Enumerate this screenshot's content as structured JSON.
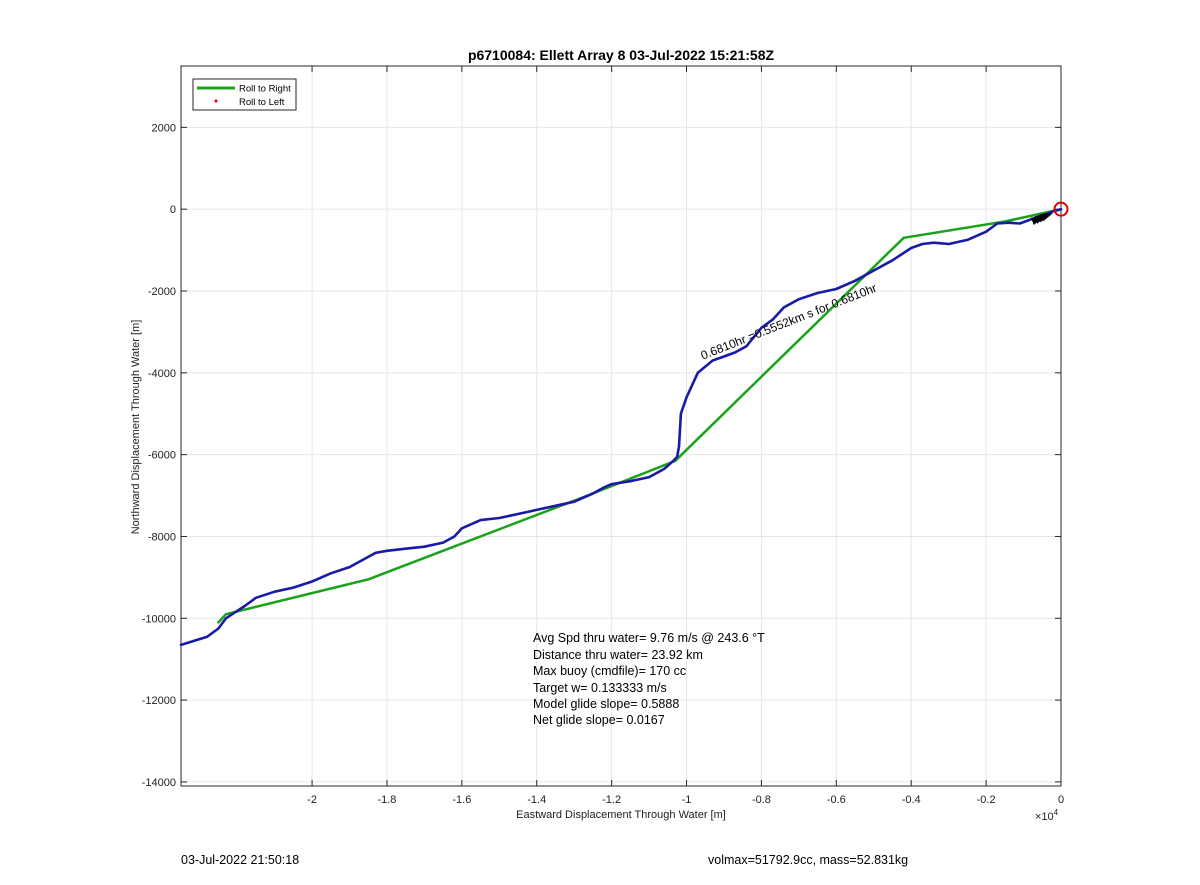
{
  "chart_data": {
    "type": "line",
    "title": "p6710084: Ellett Array 8 03-Jul-2022 15:21:58Z",
    "xlabel": "Eastward Displacement Through Water [m]",
    "ylabel": "Northward Displacement Through Water [m]",
    "x_exponent_label": "×10",
    "x_exponent_power": "4",
    "xlim": [
      -23500,
      0
    ],
    "ylim": [
      -14100,
      3500
    ],
    "x_ticks": [
      -20000,
      -18000,
      -16000,
      -14000,
      -12000,
      -10000,
      -8000,
      -6000,
      -4000,
      -2000,
      0
    ],
    "x_tick_labels": [
      "-2",
      "-1.8",
      "-1.6",
      "-1.4",
      "-1.2",
      "-1",
      "-0.8",
      "-0.6",
      "-0.4",
      "-0.2",
      "0"
    ],
    "y_ticks": [
      2000,
      0,
      -2000,
      -4000,
      -6000,
      -8000,
      -10000,
      -12000,
      -14000
    ],
    "y_tick_labels": [
      "2000",
      "0",
      "-2000",
      "-4000",
      "-6000",
      "-8000",
      "-10000",
      "-12000",
      "-14000"
    ],
    "grid": true,
    "legend_position": "top-left",
    "legend": [
      {
        "label": "Roll to Right",
        "color": "#1aa31a",
        "marker": "line"
      },
      {
        "label": "Roll to Left",
        "color": "#e00000",
        "marker": "dot"
      }
    ],
    "series": [
      {
        "name": "Roll to Right",
        "color": "#1aa31a",
        "x": [
          -22500,
          -22300,
          -18500,
          -12500,
          -10300,
          -4200,
          -1500,
          0
        ],
        "y": [
          -10100,
          -9900,
          -9050,
          -6950,
          -6150,
          -700,
          -300,
          0
        ]
      },
      {
        "color": "#1a1aa8",
        "x": [
          -23500,
          -22800,
          -22500,
          -22300,
          -21800,
          -21500,
          -21000,
          -20500,
          -20000,
          -19500,
          -19000,
          -18700,
          -18500,
          -18300,
          -18000,
          -17500,
          -17000,
          -16500,
          -16200,
          -16000,
          -15500,
          -15000,
          -14500,
          -14000,
          -13500,
          -13000,
          -12500,
          -12200,
          -12000,
          -11500,
          -11000,
          -10600,
          -10350,
          -10250,
          -10200,
          -10150,
          -10000,
          -9700,
          -9300,
          -9000,
          -8700,
          -8400,
          -8000,
          -7700,
          -7400,
          -7000,
          -6500,
          -6000,
          -5500,
          -5000,
          -4500,
          -4000,
          -3700,
          -3400,
          -3000,
          -2500,
          -2000,
          -1700,
          -1400,
          -1100,
          -800,
          -500,
          -200,
          0
        ],
        "y": [
          -10650,
          -10450,
          -10250,
          -10000,
          -9700,
          -9500,
          -9350,
          -9250,
          -9100,
          -8900,
          -8750,
          -8600,
          -8500,
          -8400,
          -8350,
          -8300,
          -8250,
          -8150,
          -8000,
          -7800,
          -7600,
          -7550,
          -7450,
          -7350,
          -7250,
          -7150,
          -6950,
          -6800,
          -6720,
          -6650,
          -6550,
          -6350,
          -6150,
          -6050,
          -5800,
          -5000,
          -4600,
          -4000,
          -3700,
          -3600,
          -3500,
          -3350,
          -2900,
          -2700,
          -2400,
          -2200,
          -2050,
          -1950,
          -1750,
          -1500,
          -1250,
          -950,
          -850,
          -820,
          -850,
          -750,
          -550,
          -350,
          -330,
          -350,
          -250,
          -150,
          -50,
          0
        ]
      }
    ],
    "end_marker": {
      "x": 0,
      "y": 0,
      "color": "#e00000"
    },
    "rotated_label": "0.6810hr =0.5552km s for 0.6810hr",
    "annotations": [
      "Avg Spd thru water=  9.76 m/s @ 243.6 °T",
      "Distance thru water= 23.92 km",
      "Max buoy (cmdfile)= 170 cc",
      "Target w= 0.133333 m/s",
      "Model glide slope= 0.5888",
      "Net glide slope= 0.0167"
    ]
  },
  "footer": {
    "left": "03-Jul-2022 21:50:18",
    "right": "volmax=51792.9cc, mass=52.831kg"
  }
}
